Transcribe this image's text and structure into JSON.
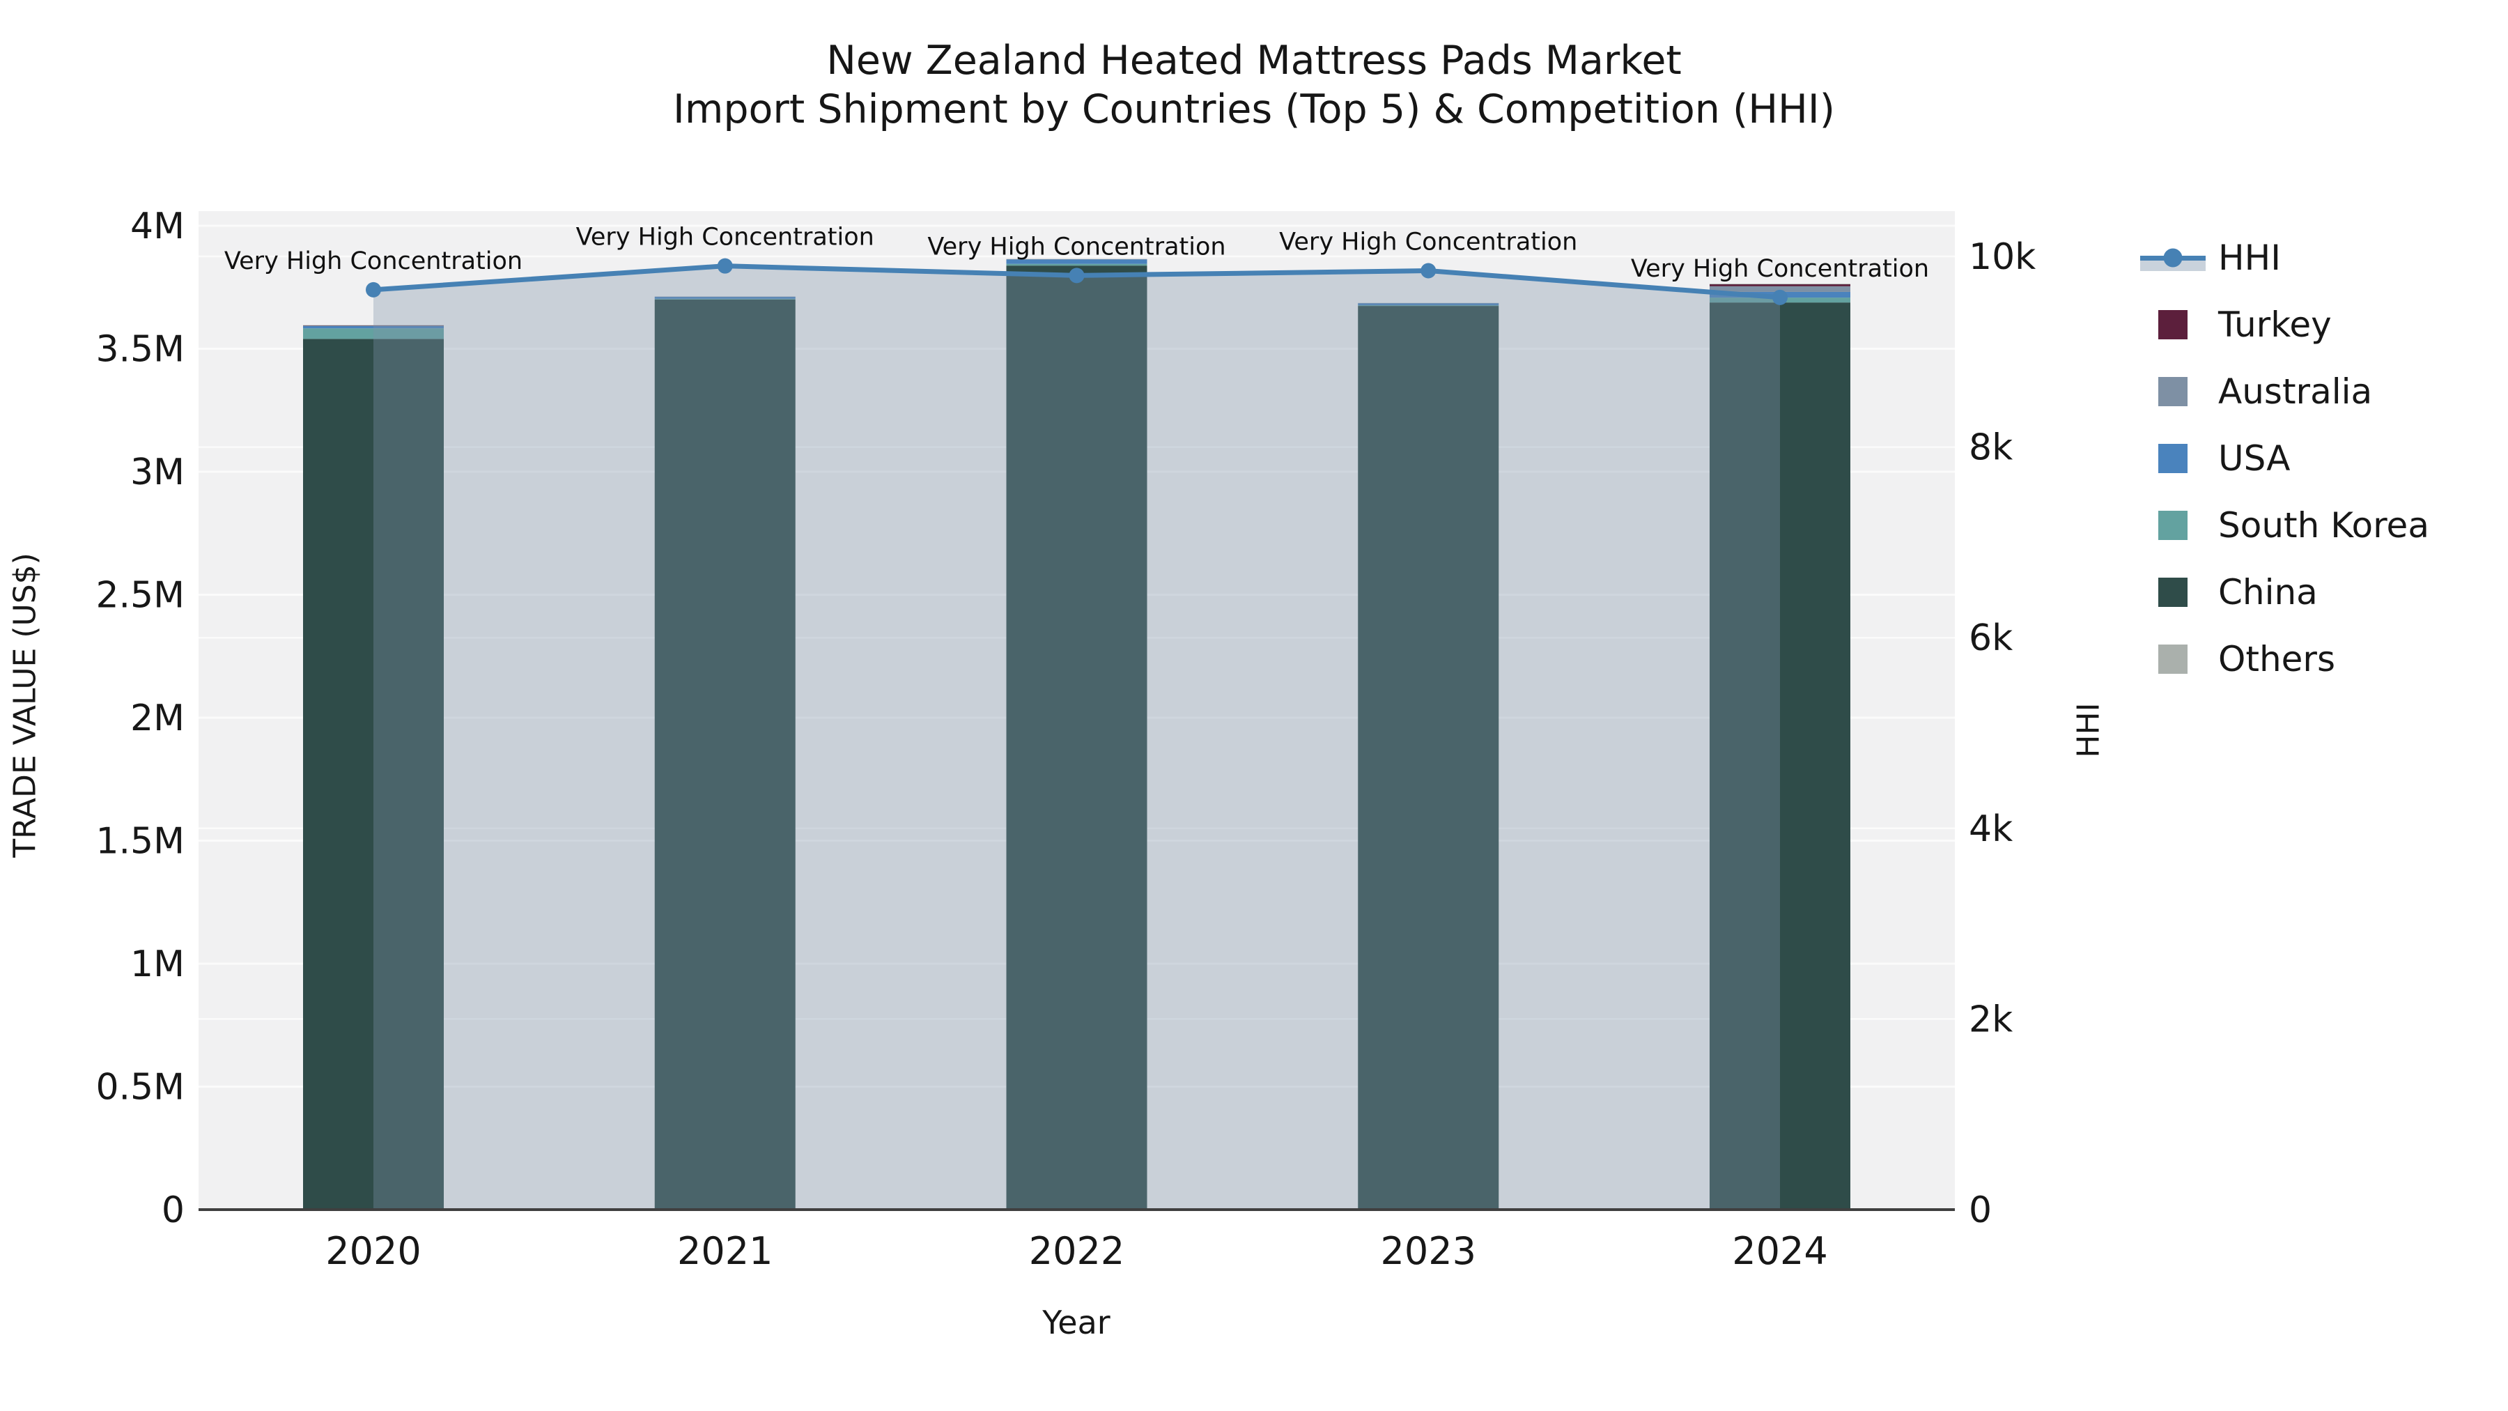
{
  "chart_data": {
    "type": "bar+line",
    "title_line1": "New Zealand Heated Mattress Pads Market",
    "title_line2": "Import Shipment by Countries (Top 5) & Competition (HHI)",
    "x": [
      "2020",
      "2021",
      "2022",
      "2023",
      "2024"
    ],
    "xlabel": "Year",
    "ylabel_left": "TRADE VALUE (US$)",
    "ylabel_right": "HHI",
    "stack_series": [
      {
        "name": "China",
        "values": [
          3540000,
          3700000,
          3838000,
          3674000,
          3688000
        ]
      },
      {
        "name": "South Korea",
        "values": [
          43000,
          3000,
          7000,
          3000,
          20000
        ]
      },
      {
        "name": "USA",
        "values": [
          9000,
          8000,
          18000,
          8000,
          23000
        ]
      },
      {
        "name": "Australia",
        "values": [
          2000,
          1000,
          1000,
          1000,
          23000
        ]
      },
      {
        "name": "Turkey",
        "values": [
          1000,
          0,
          0,
          0,
          8000
        ]
      },
      {
        "name": "Others",
        "values": [
          1000,
          0,
          1000,
          0,
          2000
        ]
      }
    ],
    "line_series": {
      "name": "HHI",
      "values": [
        9650,
        9900,
        9800,
        9850,
        9570
      ]
    },
    "annotations": [
      "Very High Concentration",
      "Very High Concentration",
      "Very High Concentration",
      "Very High Concentration",
      "Very High Concentration"
    ],
    "left_ticks": [
      {
        "label": "0",
        "value": 0
      },
      {
        "label": "0.5M",
        "value": 500000
      },
      {
        "label": "1M",
        "value": 1000000
      },
      {
        "label": "1.5M",
        "value": 1500000
      },
      {
        "label": "2M",
        "value": 2000000
      },
      {
        "label": "2.5M",
        "value": 2500000
      },
      {
        "label": "3M",
        "value": 3000000
      },
      {
        "label": "3.5M",
        "value": 3500000
      },
      {
        "label": "4M",
        "value": 4000000
      }
    ],
    "right_ticks": [
      {
        "label": "0",
        "value": 0
      },
      {
        "label": "2k",
        "value": 2000
      },
      {
        "label": "4k",
        "value": 4000
      },
      {
        "label": "6k",
        "value": 6000
      },
      {
        "label": "8k",
        "value": 8000
      },
      {
        "label": "10k",
        "value": 10000
      }
    ],
    "axes": {
      "left": {
        "min": 0,
        "max": 4000000
      },
      "right": {
        "min": 0,
        "max": 10000
      },
      "grid": "on",
      "legend_position": "right"
    },
    "colors": {
      "HHI": "#4681b4",
      "Turkey": "#5c1f3c",
      "Australia": "#7e90a4",
      "USA": "#4a83bd",
      "South Korea": "#63a2a0",
      "China": "#2f4c49",
      "Others": "#aab0ac",
      "hhi_fill": "rgba(126,145,169,0.35)",
      "legend_band": "#c9d2dc",
      "plot_bg": "#f1f1f2",
      "grid": "#fbfbfb",
      "axis_line": "#3f3f3f"
    }
  },
  "legend": {
    "items": [
      "HHI",
      "Turkey",
      "Australia",
      "USA",
      "South Korea",
      "China",
      "Others"
    ]
  }
}
